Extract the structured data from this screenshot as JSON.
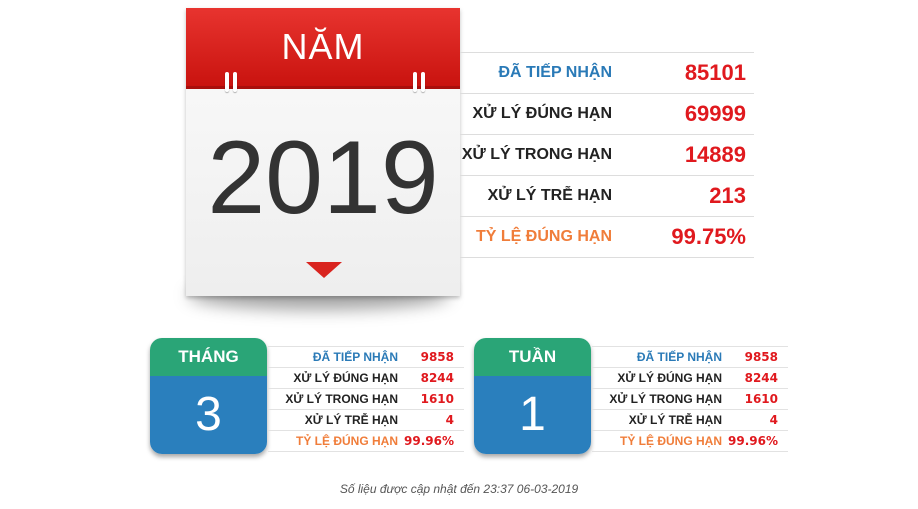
{
  "year_panel": {
    "header": "NĂM",
    "value": "2019"
  },
  "year_stats": [
    {
      "label": "ĐÃ TIẾP NHẬN",
      "value": "85101"
    },
    {
      "label": "XỬ LÝ ĐÚNG HẠN",
      "value": "69999"
    },
    {
      "label": "XỬ LÝ TRONG HẠN",
      "value": "14889"
    },
    {
      "label": "XỬ LÝ TRỄ HẠN",
      "value": "213"
    },
    {
      "label": "TỶ LỆ ĐÚNG HẠN",
      "value": "99.75%"
    }
  ],
  "month_panel": {
    "header": "THÁNG",
    "value": "3",
    "stats": [
      {
        "label": "ĐÃ TIẾP NHẬN",
        "value": "9858"
      },
      {
        "label": "XỬ LÝ ĐÚNG HẠN",
        "value": "8244"
      },
      {
        "label": "XỬ LÝ TRONG HẠN",
        "value": "1610"
      },
      {
        "label": "XỬ LÝ TRỄ HẠN",
        "value": "4"
      },
      {
        "label": "TỶ LỆ ĐÚNG HẠN",
        "value": "99.96%"
      }
    ]
  },
  "week_panel": {
    "header": "TUẦN",
    "value": "1",
    "stats": [
      {
        "label": "ĐÃ TIẾP NHẬN",
        "value": "9858"
      },
      {
        "label": "XỬ LÝ ĐÚNG HẠN",
        "value": "8244"
      },
      {
        "label": "XỬ LÝ TRONG HẠN",
        "value": "1610"
      },
      {
        "label": "XỬ LÝ TRỄ HẠN",
        "value": "4"
      },
      {
        "label": "TỶ LỆ ĐÚNG HẠN",
        "value": "99.96%"
      }
    ]
  },
  "footer": "Số liệu được cập nhật đến 23:37 06-03-2019",
  "colors": {
    "calendar_red": "#d9241f",
    "value_red": "#e0191e",
    "label_blue": "#2a7ab7",
    "label_orange": "#f07d3a",
    "card_green": "#2aa577",
    "card_blue": "#2a7fbd"
  },
  "icons": [
    "calendar-icon",
    "calendar-arrow-icon"
  ]
}
